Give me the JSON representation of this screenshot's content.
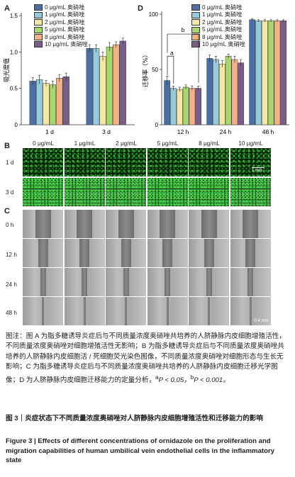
{
  "panels": {
    "A": "A",
    "B": "B",
    "C": "C",
    "D": "D"
  },
  "legend": [
    "0 μg/mL 奥硝唑",
    "1 μg/mL 奥硝唑",
    "2 μg/mL 奥硝唑",
    "5 μg/mL 奥硝唑",
    "8 μg/mL 奥硝唑",
    "10 μg/mL 奥硝唑"
  ],
  "colors": [
    "#4a6fa5",
    "#93cddd",
    "#f3e6a6",
    "#a6d96a",
    "#f4b183",
    "#7b5d8a"
  ],
  "chart_data": [
    {
      "type": "bar",
      "ylabel": "吸光度值",
      "categories": [
        "1 d",
        "3 d"
      ],
      "ylim": [
        0,
        1.5
      ],
      "yticks": [
        "0",
        "0.5",
        "1.0",
        "1.5"
      ],
      "series": [
        {
          "name": "0 μg/mL 奥硝唑",
          "values": [
            0.6,
            1.05
          ],
          "errors": [
            0.05,
            0.05
          ]
        },
        {
          "name": "1 μg/mL 奥硝唑",
          "values": [
            0.62,
            1.05
          ],
          "errors": [
            0.06,
            0.05
          ]
        },
        {
          "name": "2 μg/mL 奥硝唑",
          "values": [
            0.57,
            0.94
          ],
          "errors": [
            0.04,
            0.06
          ]
        },
        {
          "name": "5 μg/mL 奥硝唑",
          "values": [
            0.55,
            1.07
          ],
          "errors": [
            0.05,
            0.06
          ]
        },
        {
          "name": "8 μg/mL 奥硝唑",
          "values": [
            0.64,
            1.1
          ],
          "errors": [
            0.05,
            0.04
          ]
        },
        {
          "name": "10 μg/mL 奥硝唑",
          "values": [
            0.66,
            1.15
          ],
          "errors": [
            0.05,
            0.04
          ]
        }
      ]
    },
    {
      "type": "bar",
      "ylabel": "迁移率（%）",
      "categories": [
        "12 h",
        "24 h",
        "48 h"
      ],
      "ylim": [
        0,
        100
      ],
      "yticks": [
        "0",
        "50",
        "100"
      ],
      "annotations": [
        "a",
        "b"
      ],
      "series": [
        {
          "name": "0 μg/mL 奥硝唑",
          "values": [
            40,
            60,
            95
          ],
          "errors": [
            4,
            3,
            1
          ]
        },
        {
          "name": "1 μg/mL 奥硝唑",
          "values": [
            33,
            59,
            94
          ],
          "errors": [
            2,
            3,
            1
          ]
        },
        {
          "name": "2 μg/mL 奥硝唑",
          "values": [
            32,
            55,
            94
          ],
          "errors": [
            2,
            3,
            1
          ]
        },
        {
          "name": "5 μg/mL 奥硝唑",
          "values": [
            34,
            62,
            94
          ],
          "errors": [
            2,
            2,
            1
          ]
        },
        {
          "name": "8 μg/mL 奥硝唑",
          "values": [
            33,
            59,
            94
          ],
          "errors": [
            2,
            3,
            1
          ]
        },
        {
          "name": "10 μg/mL 奥硝唑",
          "values": [
            33,
            56,
            94
          ],
          "errors": [
            2,
            3,
            1
          ]
        }
      ]
    }
  ],
  "fluorescence": {
    "columns": [
      "0 μg/mL",
      "1 μg/mL",
      "2 μg/mL",
      "5 μg/mL",
      "8 μg/mL",
      "10 μg/mL"
    ],
    "rows": [
      "1 d",
      "3 d"
    ],
    "scalebar": "1 mm"
  },
  "scratch": {
    "rows": [
      "0 h",
      "12 h",
      "24 h",
      "48 h"
    ],
    "scalebar": "0.4 mm"
  },
  "caption": {
    "zh": "图注：图 A 为脂多糖诱导炎症后与不同质量浓度奥硝唑共培养的人脐静脉内皮细胞增殖活性，不同质量浓度奥硝唑对细胞增殖活性无影响；B 为脂多糖诱导炎症后与不同质量浓度奥硝唑共培养的人脐静脉内皮细胞活 / 死细胞荧光染色图像，不同质量浓度奥硝唑对细胞形态与生长无影响；C 为脂多糖诱导炎症后与不同质量浓度奥硝唑共培养的人脐静脉内皮细胞迁移光学图像；D 为人脐静脉内皮细胞迁移能力的定量分析，",
    "zh_tail_a": "a",
    "zh_tail_a_text": "P < 0.05，",
    "zh_tail_b": "b",
    "zh_tail_b_text": "P < 0.001。",
    "title_zh": "图 3｜炎症状态下不同质量浓度奥硝唑对人脐静脉内皮细胞增殖活性和迁移能力的影响",
    "title_en": "Figure 3 | Effects of different concentrations of ornidazole on the proliferation and migration capabilities of human umbilical vein endothelial cells in the inflammatory state"
  }
}
